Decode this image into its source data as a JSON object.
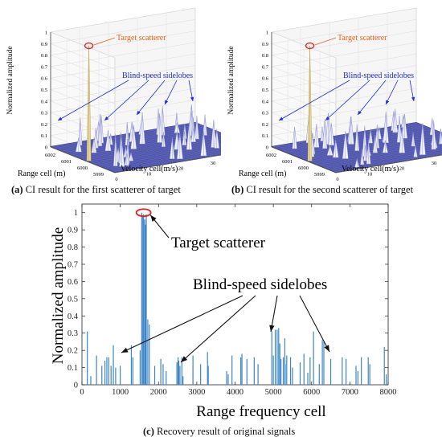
{
  "panels": {
    "a": {
      "label": "(a)",
      "caption": "CI result for the first scatterer of target"
    },
    "b": {
      "label": "(b)",
      "caption": "CI result for the second scatterer of target"
    },
    "c": {
      "label": "(c)",
      "caption": "Recovery result of original signals"
    }
  },
  "chart_data": [
    {
      "id": "a",
      "type": "surface3d",
      "zlabel": "Normalized amplitude",
      "xlabel": "Range cell (m)",
      "ylabel": "Velocity cell(m/s)",
      "z_ticks": [
        "0",
        "0.1",
        "0.2",
        "0.3",
        "0.4",
        "0.5",
        "0.6",
        "0.7",
        "0.8",
        "0.9",
        "1"
      ],
      "range_ticks": [
        "5999",
        "6000",
        "6001",
        "6002"
      ],
      "velocity_ticks": [
        "0",
        "10",
        "20",
        "30",
        "40"
      ],
      "annotations": [
        {
          "text": "Target scatterer",
          "color": "#e8621c"
        },
        {
          "text": "Blind-speed sidelobes",
          "color": "#1f2cd8"
        }
      ],
      "peak": {
        "value": 1.0
      }
    },
    {
      "id": "b",
      "type": "surface3d",
      "zlabel": "Normalized amplitude",
      "xlabel": "Range cell (m)",
      "ylabel": "Velocity cell(m/s)",
      "z_ticks": [
        "0",
        "0.1",
        "0.2",
        "0.3",
        "0.4",
        "0.5",
        "0.6",
        "0.7",
        "0.8",
        "0.9",
        "1"
      ],
      "range_ticks": [
        "5999",
        "6000",
        "6001",
        "6002"
      ],
      "velocity_ticks": [
        "0",
        "10",
        "20",
        "30",
        "40"
      ],
      "annotations": [
        {
          "text": "Target scatterer",
          "color": "#e8621c"
        },
        {
          "text": "Blind-speed sidelobes",
          "color": "#1f2cd8"
        }
      ],
      "peak": {
        "value": 1.0
      }
    },
    {
      "id": "c",
      "type": "stem",
      "xlabel": "Range frequency cell",
      "ylabel": "Normalized amplitude",
      "xlim": [
        0,
        8000
      ],
      "ylim": [
        0,
        1.05
      ],
      "x_ticks": [
        0,
        1000,
        2000,
        3000,
        4000,
        5000,
        6000,
        7000,
        8000
      ],
      "y_ticks": [
        0,
        0.1,
        0.2,
        0.3,
        0.4,
        0.5,
        0.6,
        0.7,
        0.8,
        0.9,
        1
      ],
      "grid": false,
      "series_color": "#3d86c6",
      "annotations": [
        {
          "text": "Target scatterer"
        },
        {
          "text": "Blind-speed sidelobes"
        }
      ],
      "x": [
        140,
        230,
        380,
        520,
        600,
        650,
        700,
        760,
        820,
        880,
        1000,
        1290,
        1330,
        1520,
        1560,
        1590,
        1610,
        1640,
        1660,
        1680,
        1720,
        1760,
        1900,
        2060,
        2120,
        2200,
        2480,
        2510,
        2530,
        2560,
        2610,
        2640,
        2900,
        3100,
        3280,
        3300,
        3780,
        3820,
        3920,
        4150,
        4180,
        4310,
        4500,
        4600,
        4960,
        5000,
        5050,
        5100,
        5140,
        5170,
        5200,
        5260,
        5300,
        5310,
        5350,
        5450,
        5500,
        5700,
        5800,
        5900,
        5960,
        6050,
        6200,
        6280,
        6320,
        6500,
        6800,
        6900,
        7160,
        7210,
        7300,
        7480,
        7520,
        7900,
        7950
      ],
      "values": [
        0.31,
        0.05,
        0.17,
        0.11,
        0.14,
        0.16,
        0.16,
        0.11,
        0.23,
        0.1,
        0.11,
        0.23,
        0.16,
        0.2,
        1.0,
        0.98,
        0.99,
        0.96,
        0.93,
        0.99,
        0.38,
        0.35,
        0.11,
        0.15,
        0.12,
        0.08,
        0.13,
        0.16,
        0.14,
        0.11,
        0.16,
        0.05,
        0.17,
        0.12,
        0.19,
        0.11,
        0.08,
        0.06,
        0.17,
        0.16,
        0.18,
        0.15,
        0.16,
        0.12,
        0.31,
        0.17,
        0.32,
        0.32,
        0.33,
        0.24,
        0.15,
        0.16,
        0.27,
        0.12,
        0.17,
        0.16,
        0.1,
        0.13,
        0.18,
        0.07,
        0.16,
        0.31,
        0.12,
        0.26,
        0.25,
        0.15,
        0.16,
        0.15,
        0.11,
        0.08,
        0.16,
        0.16,
        0.12,
        0.22,
        0.06
      ]
    }
  ]
}
